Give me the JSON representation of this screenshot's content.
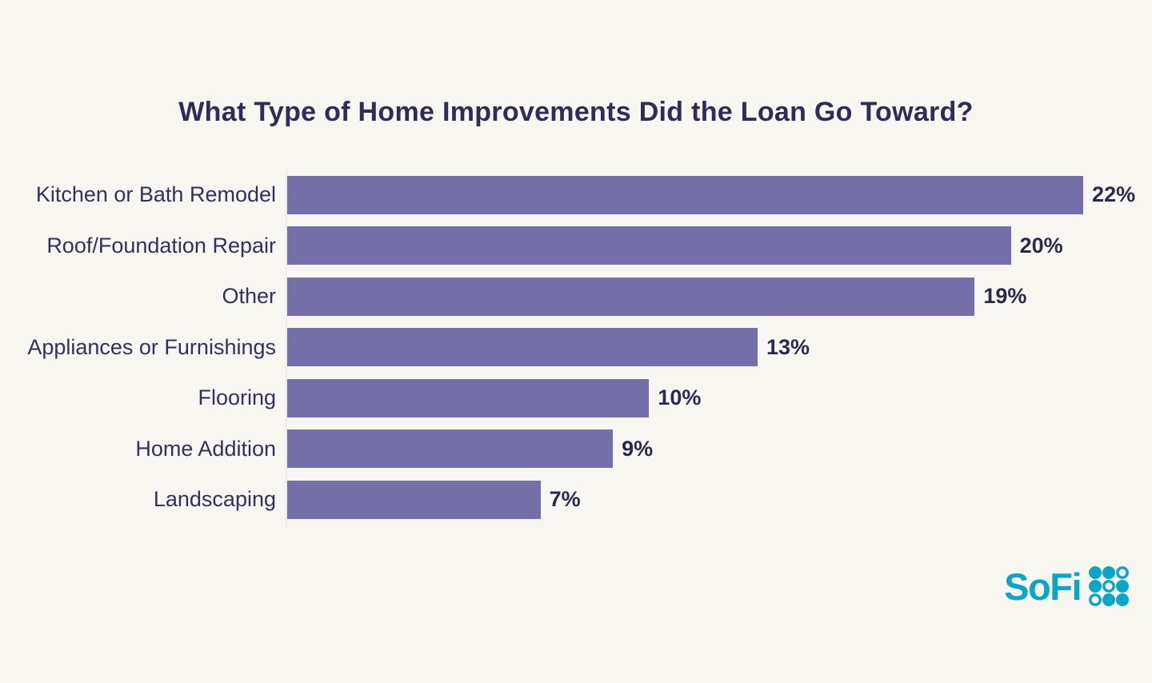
{
  "background_color": "#f8f6f1",
  "chart_data": {
    "type": "bar",
    "orientation": "horizontal",
    "title": "What Type of Home Improvements Did the Loan Go Toward?",
    "categories": [
      "Kitchen or Bath Remodel",
      "Roof/Foundation Repair",
      "Other",
      "Appliances or Furnishings",
      "Flooring",
      "Home Addition",
      "Landscaping"
    ],
    "values": [
      22,
      20,
      19,
      13,
      10,
      9,
      7
    ],
    "value_labels": [
      "22%",
      "20%",
      "19%",
      "13%",
      "10%",
      "9%",
      "7%"
    ],
    "value_suffix": "%",
    "xlabel": "",
    "ylabel": "",
    "xlim": [
      0,
      24
    ],
    "grid": false,
    "legend": false,
    "bar_color": "#746fa8",
    "title_color": "#2f2c58",
    "label_color": "#333060",
    "value_label_color": "#2c2950",
    "axis_line_color": "#eeebe3"
  },
  "branding": {
    "logo_text": "SoFi",
    "logo_color": "#0aa6c9",
    "logo_dot_pattern": [
      [
        "filled",
        "filled",
        "outline"
      ],
      [
        "filled",
        "outline",
        "filled"
      ],
      [
        "outline",
        "filled",
        "filled"
      ]
    ]
  }
}
